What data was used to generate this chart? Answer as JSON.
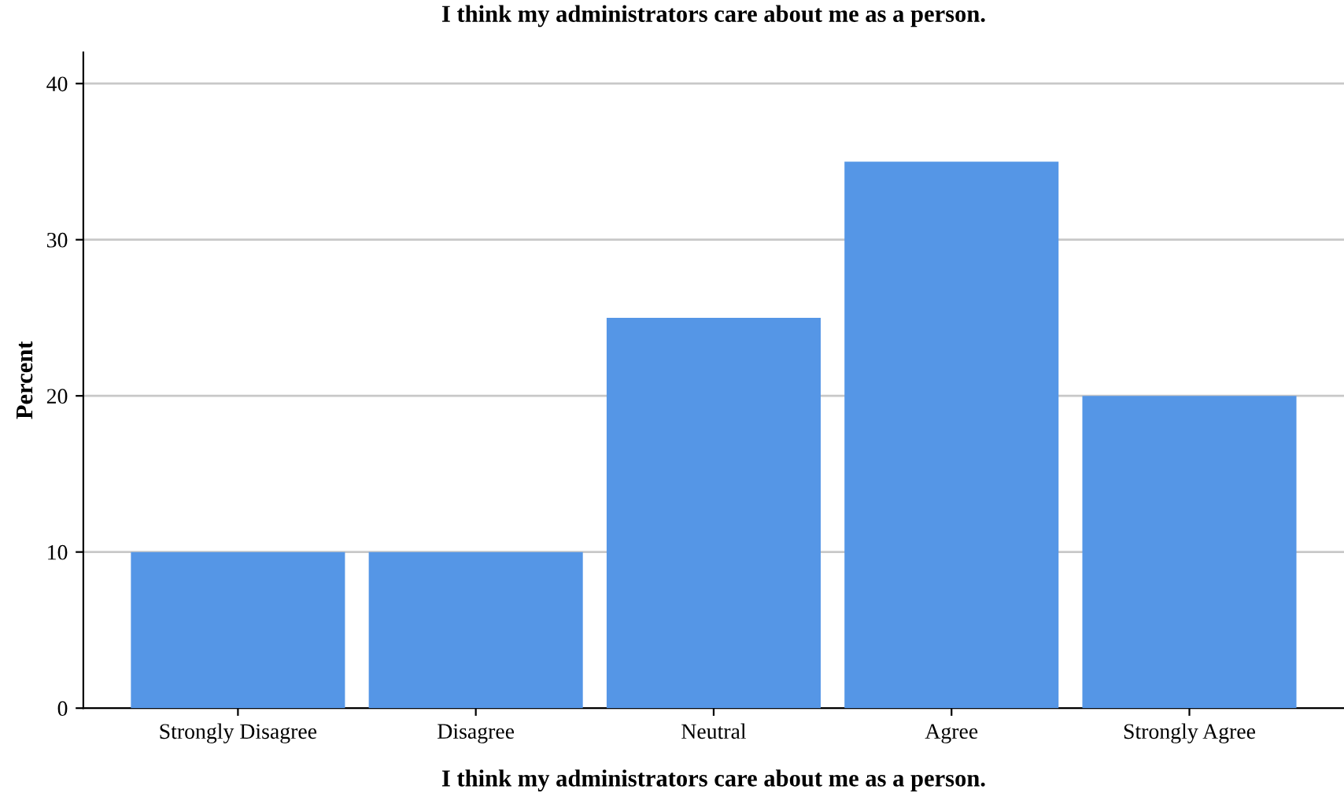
{
  "chart_data": {
    "type": "bar",
    "title": "I think my administrators care about me as a person.",
    "xlabel": "I think my administrators care about me as a person.",
    "ylabel": "Percent",
    "categories": [
      "Strongly Disagree",
      "Disagree",
      "Neutral",
      "Agree",
      "Strongly Agree"
    ],
    "values": [
      10,
      10,
      25,
      35,
      20
    ],
    "color": "#5596e6",
    "ylim": [
      0,
      42
    ],
    "yticks": [
      0,
      10,
      20,
      30,
      40
    ],
    "grid": "y"
  }
}
